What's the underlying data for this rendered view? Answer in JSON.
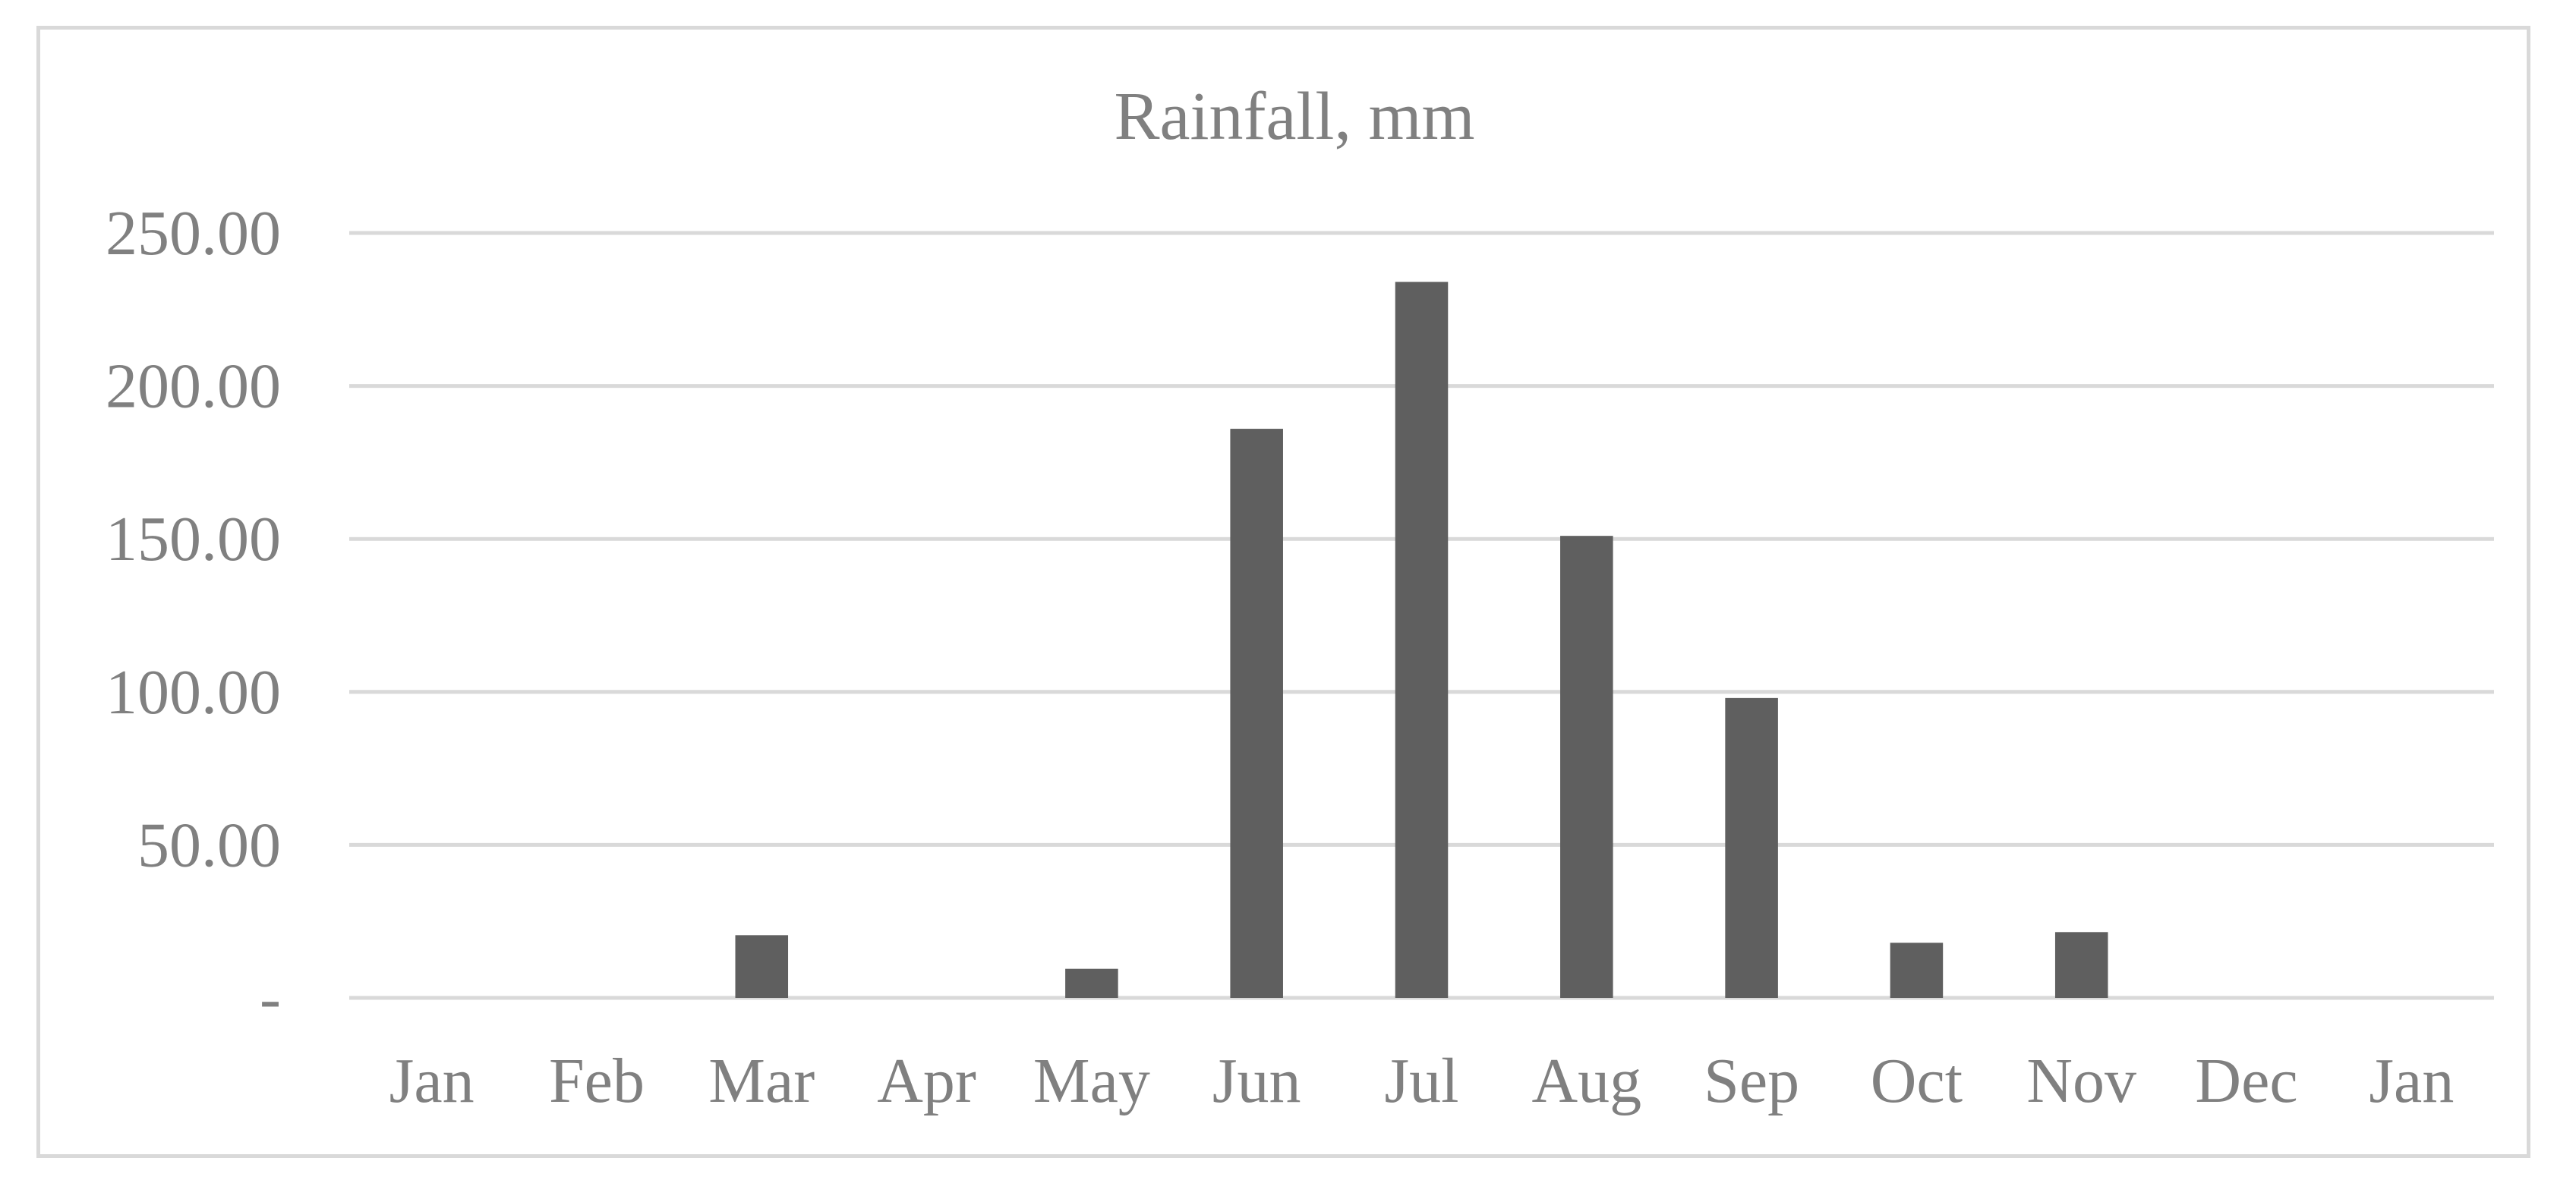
{
  "chart_data": {
    "type": "bar",
    "title": "Rainfall, mm",
    "xlabel": "",
    "ylabel": "",
    "categories": [
      "Jan",
      "Feb",
      "Mar",
      "Apr",
      "May",
      "Jun",
      "Jul",
      "Aug",
      "Sep",
      "Oct",
      "Nov",
      "Dec",
      "Jan"
    ],
    "values": [
      0,
      0,
      20.5,
      0,
      9.5,
      186,
      234,
      151,
      98,
      18,
      21.5,
      0,
      0
    ],
    "ylim": [
      0,
      250
    ],
    "yticks": [
      0,
      50,
      100,
      150,
      200,
      250
    ],
    "ytick_labels": [
      "-",
      "50.00",
      "100.00",
      "150.00",
      "200.00",
      "250.00"
    ],
    "grid": true,
    "legend": "none",
    "bar_color": "#5f5f5f",
    "grid_color": "#d9d9d9",
    "text_color": "#808080"
  }
}
